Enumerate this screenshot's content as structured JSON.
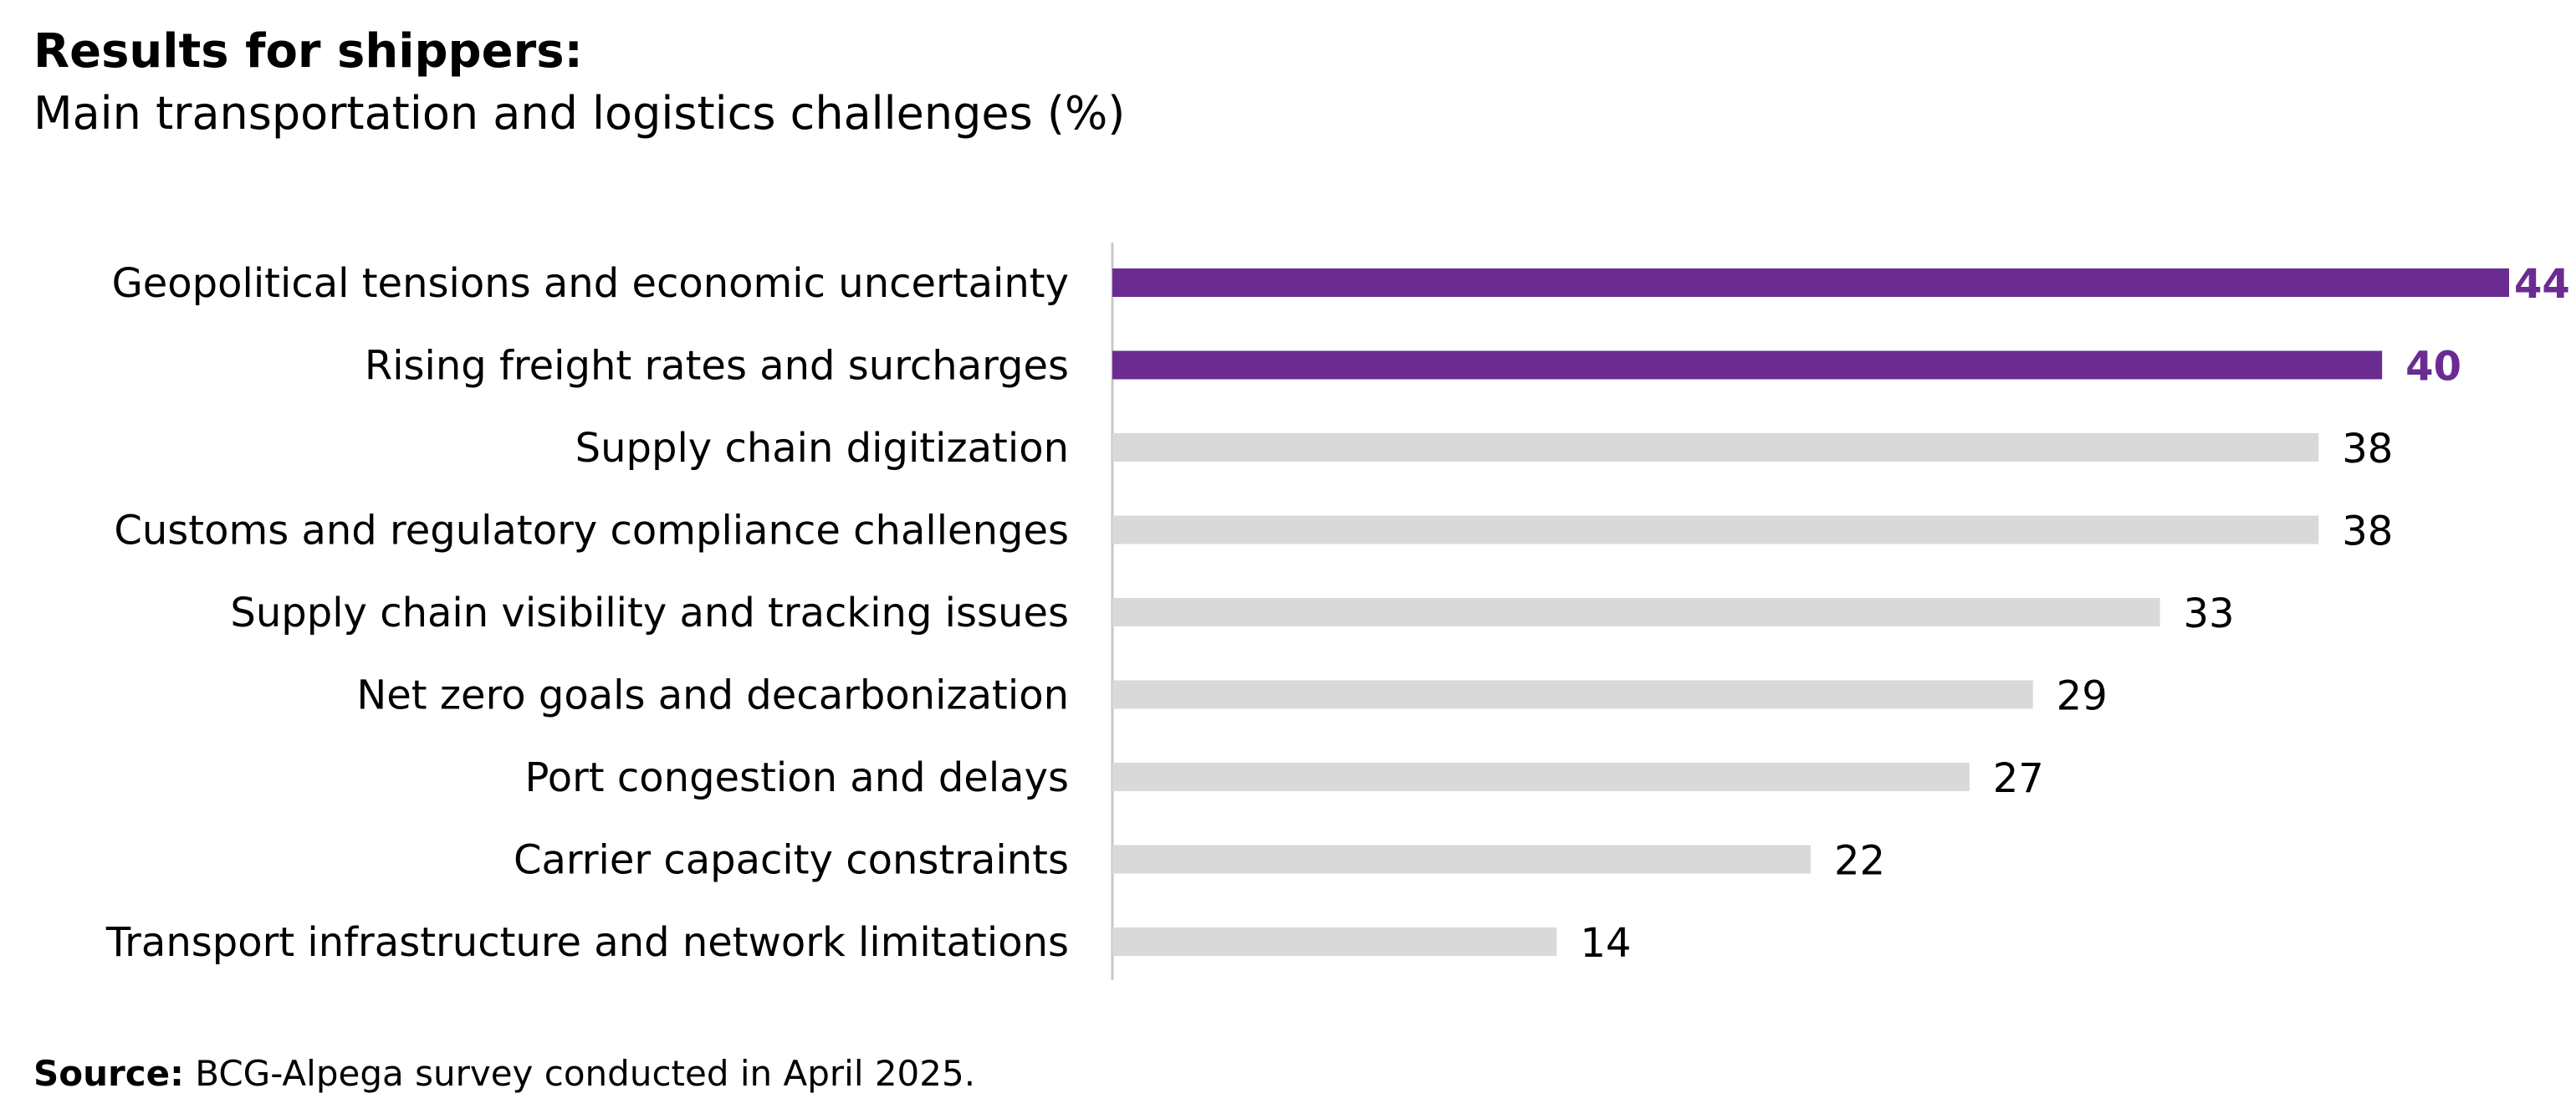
{
  "header": {
    "title": "Results for shippers:",
    "subtitle": "Main transportation and logistics challenges (%)"
  },
  "footer": {
    "source_label": "Source:",
    "source_text": " BCG-Alpega survey conducted in April 2025."
  },
  "chart_data": {
    "type": "bar",
    "orientation": "horizontal",
    "title": "Results for shippers:",
    "subtitle": "Main transportation and logistics challenges (%)",
    "categories": [
      "Geopolitical tensions and economic uncertainty",
      "Rising freight rates and surcharges",
      "Supply chain digitization",
      "Customs and regulatory compliance challenges",
      "Supply chain visibility and tracking issues",
      "Net zero goals and decarbonization",
      "Port congestion and delays",
      "Carrier capacity constraints",
      "Transport infrastructure and network limitations"
    ],
    "values": [
      44,
      40,
      38,
      38,
      33,
      29,
      27,
      22,
      14
    ],
    "highlighted": [
      true,
      true,
      false,
      false,
      false,
      false,
      false,
      false,
      false
    ],
    "xlim": [
      0,
      44
    ],
    "grid": false,
    "data_labels": true,
    "colors": {
      "highlight": "#6A2C91",
      "default": "#D9D9D9",
      "axis": "#C8C8C8",
      "label_default": "#000000"
    }
  }
}
